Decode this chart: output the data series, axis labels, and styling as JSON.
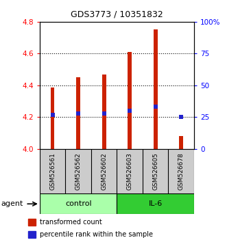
{
  "title": "GDS3773 / 10351832",
  "samples": [
    "GSM526561",
    "GSM526562",
    "GSM526602",
    "GSM526603",
    "GSM526605",
    "GSM526678"
  ],
  "bar_values": [
    4.385,
    4.45,
    4.47,
    4.61,
    4.75,
    4.08
  ],
  "bar_bottom": 4.0,
  "percentile_values": [
    27.0,
    28.0,
    28.0,
    30.0,
    33.0,
    25.0
  ],
  "bar_color": "#cc2200",
  "percentile_color": "#2222cc",
  "ylim_left": [
    4.0,
    4.8
  ],
  "ylim_right": [
    0,
    100
  ],
  "yticks_left": [
    4.0,
    4.2,
    4.4,
    4.6,
    4.8
  ],
  "yticks_right": [
    0,
    25,
    50,
    75,
    100
  ],
  "ytick_labels_right": [
    "0",
    "25",
    "50",
    "75",
    "100%"
  ],
  "groups": [
    {
      "label": "control",
      "indices": [
        0,
        1,
        2
      ],
      "color": "#aaffaa"
    },
    {
      "label": "IL-6",
      "indices": [
        3,
        4,
        5
      ],
      "color": "#33cc33"
    }
  ],
  "agent_label": "agent",
  "legend_items": [
    {
      "label": "transformed count",
      "color": "#cc2200"
    },
    {
      "label": "percentile rank within the sample",
      "color": "#2222cc"
    }
  ],
  "bar_width": 0.15,
  "sample_box_color": "#cccccc",
  "fig_width": 3.31,
  "fig_height": 3.54,
  "dpi": 100
}
